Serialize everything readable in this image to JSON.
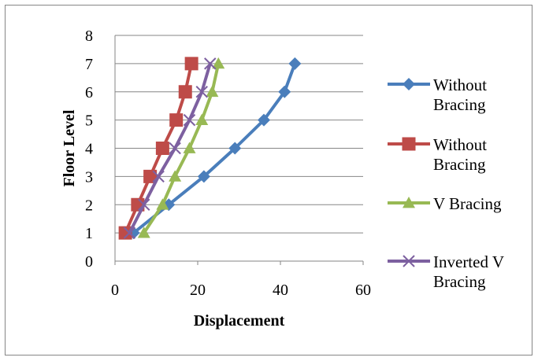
{
  "chart_data": {
    "type": "line",
    "title": "",
    "xlabel": "Displacement",
    "ylabel": "Floor Level",
    "xlim": [
      0,
      60
    ],
    "ylim": [
      0,
      8
    ],
    "x_ticks": [
      "0",
      "20",
      "40",
      "60"
    ],
    "y_ticks": [
      "0",
      "1",
      "2",
      "3",
      "4",
      "5",
      "6",
      "7",
      "8"
    ],
    "grid": "horizontal",
    "legend_position": "right",
    "series": [
      {
        "name": "Without Bracing",
        "color": "#4A7EBB",
        "marker": "diamond",
        "x": [
          4.5,
          13,
          21.5,
          29,
          36,
          41,
          43.5
        ],
        "y": [
          1,
          2,
          3,
          4,
          5,
          6,
          7
        ]
      },
      {
        "name": "Without Bracing",
        "color": "#BE4B48",
        "marker": "square",
        "x": [
          2.5,
          5.5,
          8.5,
          11.5,
          14.8,
          17,
          18.5
        ],
        "y": [
          1,
          2,
          3,
          4,
          5,
          6,
          7
        ]
      },
      {
        "name": "V Bracing",
        "color": "#98B954",
        "marker": "triangle",
        "x": [
          7,
          11.5,
          14.5,
          18,
          21,
          23.5,
          25
        ],
        "y": [
          1,
          2,
          3,
          4,
          5,
          6,
          7
        ]
      },
      {
        "name": "Inverted V Bracing",
        "color": "#7D60A0",
        "marker": "x",
        "x": [
          3.5,
          7,
          10.5,
          14.5,
          18,
          21,
          23
        ],
        "y": [
          1,
          2,
          3,
          4,
          5,
          6,
          7
        ]
      }
    ]
  },
  "legend": [
    {
      "lines": [
        "Without",
        "Bracing"
      ]
    },
    {
      "lines": [
        "Without",
        "Bracing"
      ]
    },
    {
      "lines": [
        "V Bracing"
      ]
    },
    {
      "lines": [
        "Inverted V",
        "Bracing"
      ]
    }
  ]
}
